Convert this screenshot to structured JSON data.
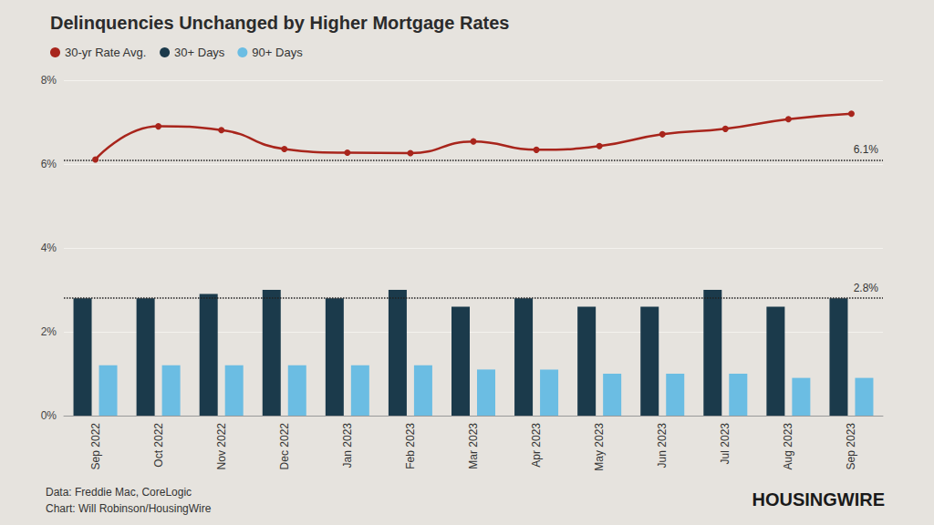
{
  "chart_data": {
    "type": "bar",
    "title": "Delinquencies Unchanged by Higher Mortgage Rates",
    "categories": [
      "Sep 2022",
      "Oct 2022",
      "Nov 2022",
      "Dec 2022",
      "Jan 2023",
      "Feb 2023",
      "Mar 2023",
      "Apr 2023",
      "May 2023",
      "Jun 2023",
      "Jul 2023",
      "Aug 2023",
      "Sep 2023"
    ],
    "series": [
      {
        "name": "30-yr Rate Avg.",
        "type": "line",
        "color": "#a8251c",
        "marker": "circle",
        "values": [
          6.11,
          6.9,
          6.81,
          6.36,
          6.27,
          6.26,
          6.54,
          6.34,
          6.43,
          6.71,
          6.84,
          7.07,
          7.2
        ]
      },
      {
        "name": "30+ Days",
        "type": "bar",
        "color": "#1b3a4b",
        "values": [
          2.8,
          2.8,
          2.9,
          3.0,
          2.8,
          3.0,
          2.6,
          2.8,
          2.6,
          2.6,
          3.0,
          2.6,
          2.8
        ]
      },
      {
        "name": "90+ Days",
        "type": "bar",
        "color": "#6bbde3",
        "values": [
          1.2,
          1.2,
          1.2,
          1.2,
          1.2,
          1.2,
          1.1,
          1.1,
          1.0,
          1.0,
          1.0,
          0.9,
          0.9
        ]
      }
    ],
    "ylim": [
      0,
      8
    ],
    "yticks": [
      {
        "value": 0,
        "label": "0%"
      },
      {
        "value": 2,
        "label": "2%"
      },
      {
        "value": 4,
        "label": "4%"
      },
      {
        "value": 6,
        "label": "6%"
      },
      {
        "value": 8,
        "label": "8%"
      }
    ],
    "grid": true,
    "legend": "top-left",
    "annotations": [
      {
        "y": 6.1,
        "label": "6.1%"
      },
      {
        "y": 2.8,
        "label": "2.8%"
      }
    ],
    "source": "Data: Freddie Mac, CoreLogic",
    "credit": "Chart: Will Robinson/HousingWire",
    "logo": "HOUSINGWIRE"
  }
}
